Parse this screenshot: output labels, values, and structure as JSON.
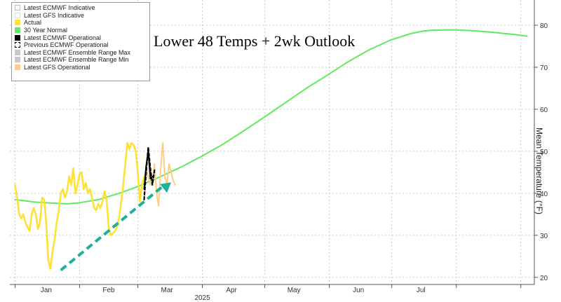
{
  "chart_data": {
    "type": "line",
    "title": "Lower 48 Temps + 2wk Outlook",
    "ylabel": "Mean Temperature (°F)",
    "ylim": [
      18,
      86
    ],
    "y_ticks": [
      20,
      30,
      40,
      50,
      60,
      70,
      80
    ],
    "x_range_days": [
      0,
      246
    ],
    "x_ticks": [
      {
        "label": "Jan",
        "day": 15
      },
      {
        "label": "Feb",
        "day": 45
      },
      {
        "label": "Mar",
        "day": 73
      },
      {
        "label": "Apr",
        "day": 104
      },
      {
        "label": "May",
        "day": 134
      },
      {
        "label": "Jun",
        "day": 165
      },
      {
        "label": "Jul",
        "day": 195
      }
    ],
    "month_boundaries_days": [
      0,
      31,
      59,
      90,
      120,
      151,
      181,
      212,
      243
    ],
    "year_label": "2025",
    "grid": true,
    "legend": {
      "placement": "top-left",
      "items": [
        {
          "label": "Latest ECMWF Indicative",
          "color": "#ffffff",
          "border": "#bbbbbb"
        },
        {
          "label": "Latest GFS Indicative",
          "color": "#ffffff",
          "border": "#dddddd"
        },
        {
          "label": "Actual",
          "color": "#ffe135",
          "border": "#ffe135"
        },
        {
          "label": "30 Year Normal",
          "color": "#5fea5f",
          "border": "#5fea5f"
        },
        {
          "label": "Latest ECMWF Operational",
          "color": "#000000",
          "border": "#000000"
        },
        {
          "label": "Previous ECMWF Operational",
          "color": "#ffffff",
          "border": "#000000",
          "dashed": true
        },
        {
          "label": "Latest ECMWF Ensemble Range Max",
          "color": "#c8c8c8",
          "border": "#c8c8c8"
        },
        {
          "label": "Latest ECMWF Ensemble Range Min",
          "color": "#c8c8c8",
          "border": "#c8c8c8"
        },
        {
          "label": "Latest GFS Operational",
          "color": "#ffcc88",
          "border": "#ffcc88"
        }
      ]
    },
    "series": [
      {
        "name": "30 Year Normal",
        "color": "#5fea5f",
        "x": [
          0,
          10,
          20,
          25,
          30,
          40,
          50,
          60,
          70,
          80,
          90,
          100,
          110,
          120,
          130,
          140,
          150,
          160,
          170,
          180,
          190,
          196,
          200,
          210,
          220,
          230,
          240,
          246
        ],
        "y": [
          38.5,
          37.9,
          37.6,
          37.5,
          37.7,
          38.5,
          40.0,
          41.8,
          44.0,
          46.3,
          48.9,
          51.7,
          54.9,
          58.2,
          61.6,
          65.0,
          68.1,
          71.3,
          74.1,
          76.4,
          78.0,
          78.6,
          78.8,
          78.9,
          78.7,
          78.3,
          77.8,
          77.4
        ]
      },
      {
        "name": "Actual",
        "color": "#ffe135",
        "x": [
          0,
          1,
          2,
          3,
          4,
          5,
          6,
          7,
          8,
          9,
          10,
          11,
          12,
          13,
          14,
          15,
          16,
          17,
          18,
          19,
          20,
          21,
          22,
          23,
          24,
          25,
          26,
          27,
          28,
          29,
          30,
          31,
          32,
          33,
          34,
          35,
          36,
          37,
          38,
          39,
          40,
          41,
          42,
          43,
          44,
          45,
          46,
          47,
          48,
          49,
          50,
          51,
          52,
          53,
          54,
          55,
          56,
          57,
          58,
          59,
          60,
          61,
          62
        ],
        "y": [
          42,
          39,
          35,
          34,
          35,
          33,
          32,
          31,
          35,
          36.5,
          35,
          31.5,
          33,
          39,
          38.5,
          33,
          24,
          22,
          26,
          29,
          33,
          36,
          40,
          41,
          39,
          40.5,
          44,
          42,
          46,
          40,
          42,
          44.5,
          45,
          41,
          42.5,
          40,
          41,
          39,
          36.5,
          36,
          37.5,
          36.5,
          38,
          40.5,
          38.5,
          32,
          30,
          30.5,
          31,
          32,
          34,
          38,
          42,
          47,
          52,
          50.5,
          52,
          51.5,
          50,
          45,
          38,
          42,
          44
        ]
      },
      {
        "name": "Latest GFS Operational",
        "color": "#ffcc88",
        "x": [
          63,
          64,
          65,
          66,
          67,
          68,
          69,
          70,
          71,
          72,
          73,
          74,
          75,
          76,
          77
        ],
        "y": [
          46,
          44,
          42,
          43,
          47,
          40,
          37,
          46,
          52,
          44,
          42,
          47,
          45,
          43,
          42
        ]
      },
      {
        "name": "Latest ECMWF Operational",
        "color": "#000000",
        "x": [
          62,
          63,
          64,
          65,
          66
        ],
        "y": [
          41,
          46.5,
          50,
          43.5,
          44
        ]
      },
      {
        "name": "Previous ECMWF Operational",
        "color": "#000000",
        "dashed": true,
        "x": [
          62,
          63,
          64,
          65,
          66,
          67
        ],
        "y": [
          38.5,
          45,
          51,
          46,
          42,
          45.5
        ]
      }
    ]
  }
}
